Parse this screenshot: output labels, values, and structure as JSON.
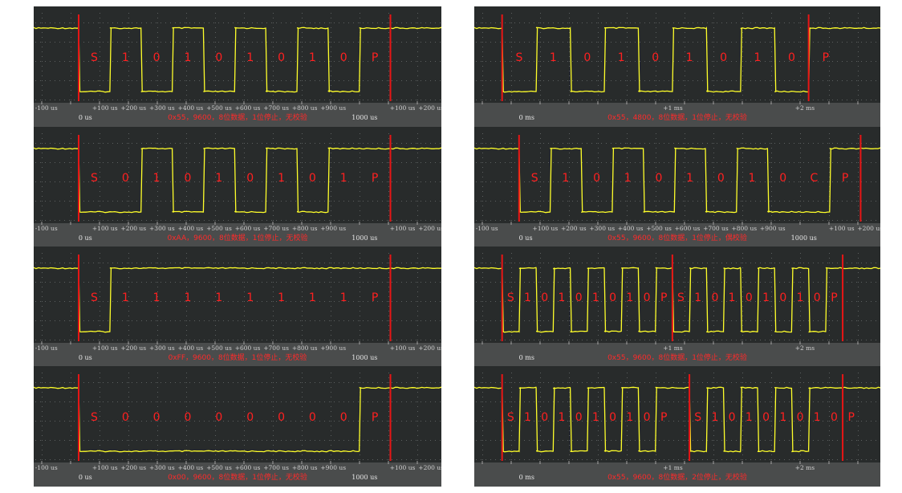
{
  "chart_data": [
    {
      "type": "line",
      "panel": "left-1",
      "title": "",
      "caption": "0x55，9600，8位数据，1位停止，无校验",
      "bits": [
        "S",
        "1",
        "0",
        "1",
        "0",
        "1",
        "0",
        "1",
        "0",
        "P"
      ],
      "signal": [
        [
          0,
          1
        ],
        [
          0,
          0
        ],
        [
          104,
          0
        ],
        [
          104,
          1
        ],
        [
          208,
          1
        ],
        [
          208,
          0
        ],
        [
          312,
          0
        ],
        [
          312,
          1
        ],
        [
          416,
          1
        ],
        [
          416,
          0
        ],
        [
          520,
          0
        ],
        [
          520,
          1
        ],
        [
          624,
          1
        ],
        [
          624,
          0
        ],
        [
          728,
          0
        ],
        [
          728,
          1
        ],
        [
          832,
          1
        ],
        [
          832,
          0
        ],
        [
          936,
          0
        ],
        [
          936,
          1
        ]
      ],
      "ticks": [
        "-100 us",
        "+100 us",
        "+200 us",
        "+300 us",
        "+400 us",
        "+500 us",
        "+600 us",
        "+700 us",
        "+800 us",
        "+900 us",
        "+100 us",
        "+200 us"
      ],
      "base_labels": [
        "0 us",
        "1000 us"
      ]
    },
    {
      "type": "line",
      "panel": "left-2",
      "title": "",
      "caption": "0xAA，9600，8位数据，1位停止，无校验",
      "bits": [
        "S",
        "0",
        "1",
        "0",
        "1",
        "0",
        "1",
        "0",
        "1",
        "P"
      ],
      "signal": [
        [
          0,
          1
        ],
        [
          0,
          0
        ],
        [
          208,
          0
        ],
        [
          208,
          1
        ],
        [
          312,
          1
        ],
        [
          312,
          0
        ],
        [
          416,
          0
        ],
        [
          416,
          1
        ],
        [
          520,
          1
        ],
        [
          520,
          0
        ],
        [
          624,
          0
        ],
        [
          624,
          1
        ],
        [
          728,
          1
        ],
        [
          728,
          0
        ],
        [
          832,
          0
        ],
        [
          832,
          1
        ]
      ],
      "ticks": [
        "-100 us",
        "+100 us",
        "+200 us",
        "+300 us",
        "+400 us",
        "+500 us",
        "+600 us",
        "+700 us",
        "+800 us",
        "+900 us",
        "+100 us",
        "+200 us"
      ],
      "base_labels": [
        "0 us",
        "1000 us"
      ]
    },
    {
      "type": "line",
      "panel": "left-3",
      "title": "",
      "caption": "0xFF，9600，8位数据，1位停止，无校验",
      "bits": [
        "S",
        "1",
        "1",
        "1",
        "1",
        "1",
        "1",
        "1",
        "1",
        "P"
      ],
      "signal": [
        [
          0,
          1
        ],
        [
          0,
          0
        ],
        [
          104,
          0
        ],
        [
          104,
          1
        ]
      ],
      "ticks": [
        "-100 us",
        "+100 us",
        "+200 us",
        "+300 us",
        "+400 us",
        "+500 us",
        "+600 us",
        "+700 us",
        "+800 us",
        "+900 us",
        "+100 us",
        "+200 us"
      ],
      "base_labels": [
        "0 us",
        "1000 us"
      ]
    },
    {
      "type": "line",
      "panel": "left-4",
      "title": "",
      "caption": "0x00，9600，8位数据，1位停止，无校验",
      "bits": [
        "S",
        "0",
        "0",
        "0",
        "0",
        "0",
        "0",
        "0",
        "0",
        "P"
      ],
      "signal": [
        [
          0,
          1
        ],
        [
          0,
          0
        ],
        [
          936,
          0
        ],
        [
          936,
          1
        ]
      ],
      "ticks": [
        "-100 us",
        "+100 us",
        "+200 us",
        "+300 us",
        "+400 us",
        "+500 us",
        "+600 us",
        "+700 us",
        "+800 us",
        "+900 us",
        "+100 us",
        "+200 us"
      ],
      "base_labels": [
        "0 us",
        "1000 us"
      ]
    },
    {
      "type": "line",
      "panel": "right-1",
      "title": "",
      "caption": "0x55，4800，8位数据，1位停止，无校验",
      "bits": [
        "S",
        "1",
        "0",
        "1",
        "0",
        "1",
        "0",
        "1",
        "0",
        "P"
      ],
      "signal": [
        [
          0,
          1
        ],
        [
          0,
          0
        ],
        [
          208,
          0
        ],
        [
          208,
          1
        ],
        [
          416,
          1
        ],
        [
          416,
          0
        ],
        [
          624,
          0
        ],
        [
          624,
          1
        ],
        [
          832,
          1
        ],
        [
          832,
          0
        ],
        [
          1040,
          0
        ],
        [
          1040,
          1
        ],
        [
          1248,
          1
        ],
        [
          1248,
          0
        ],
        [
          1456,
          0
        ],
        [
          1456,
          1
        ],
        [
          1664,
          1
        ],
        [
          1664,
          0
        ],
        [
          1872,
          0
        ],
        [
          1872,
          1
        ]
      ],
      "ticks": [
        "+1 ms",
        "+2 ms"
      ],
      "base_labels": [
        "0 ms"
      ]
    },
    {
      "type": "line",
      "panel": "right-2",
      "title": "",
      "caption": "0x55，9600，8位数据，1位停止，偶校验",
      "bits": [
        "S",
        "1",
        "0",
        "1",
        "0",
        "1",
        "0",
        "1",
        "0",
        "C",
        "P"
      ],
      "signal": [
        [
          0,
          1
        ],
        [
          0,
          0
        ],
        [
          104,
          0
        ],
        [
          104,
          1
        ],
        [
          208,
          1
        ],
        [
          208,
          0
        ],
        [
          312,
          0
        ],
        [
          312,
          1
        ],
        [
          416,
          1
        ],
        [
          416,
          0
        ],
        [
          520,
          0
        ],
        [
          520,
          1
        ],
        [
          624,
          1
        ],
        [
          624,
          0
        ],
        [
          728,
          0
        ],
        [
          728,
          1
        ],
        [
          832,
          1
        ],
        [
          832,
          0
        ],
        [
          1040,
          0
        ],
        [
          1040,
          1
        ]
      ],
      "ticks": [
        "-100 us",
        "+100 us",
        "+200 us",
        "+300 us",
        "+400 us",
        "+500 us",
        "+600 us",
        "+700 us",
        "+800 us",
        "+900 us",
        "+100 us",
        "+200 us"
      ],
      "base_labels": [
        "0 us",
        "1000 us"
      ]
    },
    {
      "type": "line",
      "panel": "right-3",
      "title": "",
      "caption": "0x55，9600，8位数据，1位停止，无校验",
      "bits": [
        "S",
        "1",
        "0",
        "1",
        "0",
        "1",
        "0",
        "1",
        "0",
        "P",
        "S",
        "1",
        "0",
        "1",
        "0",
        "1",
        "0",
        "1",
        "0",
        "P"
      ],
      "signal": [
        [
          0,
          1
        ],
        [
          0,
          0
        ],
        [
          104,
          0
        ],
        [
          104,
          1
        ],
        [
          208,
          1
        ],
        [
          208,
          0
        ],
        [
          312,
          0
        ],
        [
          312,
          1
        ],
        [
          416,
          1
        ],
        [
          416,
          0
        ],
        [
          520,
          0
        ],
        [
          520,
          1
        ],
        [
          624,
          1
        ],
        [
          624,
          0
        ],
        [
          728,
          0
        ],
        [
          728,
          1
        ],
        [
          832,
          1
        ],
        [
          832,
          0
        ],
        [
          936,
          0
        ],
        [
          936,
          1
        ],
        [
          1040,
          1
        ],
        [
          1040,
          0
        ],
        [
          1144,
          0
        ],
        [
          1144,
          1
        ],
        [
          1248,
          1
        ],
        [
          1248,
          0
        ],
        [
          1352,
          0
        ],
        [
          1352,
          1
        ],
        [
          1456,
          1
        ],
        [
          1456,
          0
        ],
        [
          1560,
          0
        ],
        [
          1560,
          1
        ],
        [
          1664,
          1
        ],
        [
          1664,
          0
        ],
        [
          1768,
          0
        ],
        [
          1768,
          1
        ],
        [
          1872,
          1
        ],
        [
          1872,
          0
        ],
        [
          1976,
          0
        ],
        [
          1976,
          1
        ]
      ],
      "ticks": [
        "+1 ms",
        "+2 ms"
      ],
      "base_labels": [
        "0 ms"
      ]
    },
    {
      "type": "line",
      "panel": "right-4",
      "title": "",
      "caption": "0x55，9600，8位数据，2位停止，无校验",
      "bits": [
        "S",
        "1",
        "0",
        "1",
        "0",
        "1",
        "0",
        "1",
        "0",
        "P",
        "S",
        "1",
        "0",
        "1",
        "0",
        "1",
        "0",
        "1",
        "0",
        "P"
      ],
      "signal": [
        [
          0,
          1
        ],
        [
          0,
          0
        ],
        [
          104,
          0
        ],
        [
          104,
          1
        ],
        [
          208,
          1
        ],
        [
          208,
          0
        ],
        [
          312,
          0
        ],
        [
          312,
          1
        ],
        [
          416,
          1
        ],
        [
          416,
          0
        ],
        [
          520,
          0
        ],
        [
          520,
          1
        ],
        [
          624,
          1
        ],
        [
          624,
          0
        ],
        [
          728,
          0
        ],
        [
          728,
          1
        ],
        [
          832,
          1
        ],
        [
          832,
          0
        ],
        [
          936,
          0
        ],
        [
          936,
          1
        ],
        [
          1144,
          1
        ],
        [
          1144,
          0
        ],
        [
          1248,
          0
        ],
        [
          1248,
          1
        ],
        [
          1352,
          1
        ],
        [
          1352,
          0
        ],
        [
          1456,
          0
        ],
        [
          1456,
          1
        ],
        [
          1560,
          1
        ],
        [
          1560,
          0
        ],
        [
          1664,
          0
        ],
        [
          1664,
          1
        ],
        [
          1768,
          1
        ],
        [
          1768,
          0
        ],
        [
          1872,
          0
        ],
        [
          1872,
          1
        ]
      ],
      "ticks": [
        "+1 ms",
        "+2 ms"
      ],
      "base_labels": [
        "0 ms"
      ]
    }
  ],
  "colors": {
    "panel_bg": "#282b2b",
    "axis_bar": "#4a4c4c",
    "grid": "#5c6060",
    "signal": "#ffff2a",
    "marker": "#e81515",
    "bit_label": "#ff2020",
    "caption": "#ff2a2a"
  }
}
